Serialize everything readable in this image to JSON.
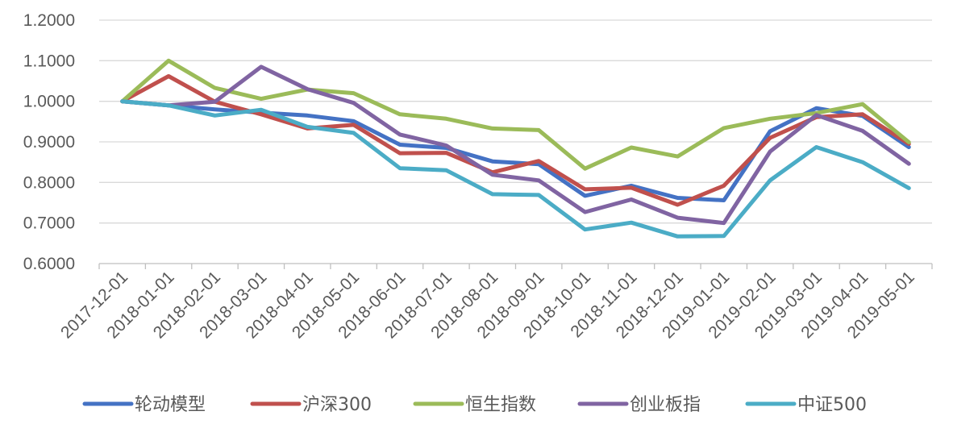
{
  "chart_data": {
    "type": "line",
    "title": "",
    "xlabel": "",
    "ylabel": "",
    "ylim": [
      0.6,
      1.2
    ],
    "yticks": [
      "0.6000",
      "0.7000",
      "0.8000",
      "0.9000",
      "1.0000",
      "1.1000",
      "1.2000"
    ],
    "ytick_values": [
      0.6,
      0.7,
      0.8,
      0.9,
      1.0,
      1.1,
      1.2
    ],
    "grid": true,
    "legend_position": "bottom",
    "categories": [
      "2017-12-01",
      "2018-01-01",
      "2018-02-01",
      "2018-03-01",
      "2018-04-01",
      "2018-05-01",
      "2018-06-01",
      "2018-07-01",
      "2018-08-01",
      "2018-09-01",
      "2018-10-01",
      "2018-11-01",
      "2018-12-01",
      "2019-01-01",
      "2019-02-01",
      "2019-03-01",
      "2019-04-01",
      "2019-05-01"
    ],
    "series": [
      {
        "name": "轮动模型",
        "color": "#4472C4",
        "values": [
          1.0,
          0.99,
          0.98,
          0.972,
          0.965,
          0.951,
          0.893,
          0.885,
          0.852,
          0.845,
          0.767,
          0.792,
          0.762,
          0.756,
          0.926,
          0.983,
          0.964,
          0.887
        ]
      },
      {
        "name": "沪深300",
        "color": "#C0504D",
        "values": [
          1.0,
          1.062,
          0.999,
          0.968,
          0.933,
          0.942,
          0.872,
          0.873,
          0.825,
          0.853,
          0.783,
          0.787,
          0.745,
          0.792,
          0.91,
          0.961,
          0.968,
          0.895
        ]
      },
      {
        "name": "恒生指数",
        "color": "#9BBB59",
        "values": [
          1.0,
          1.1,
          1.033,
          1.006,
          1.029,
          1.02,
          0.968,
          0.957,
          0.933,
          0.929,
          0.834,
          0.886,
          0.864,
          0.934,
          0.957,
          0.971,
          0.993,
          0.899
        ]
      },
      {
        "name": "创业板指",
        "color": "#8064A2",
        "values": [
          1.0,
          0.99,
          0.999,
          1.085,
          1.03,
          0.996,
          0.918,
          0.891,
          0.819,
          0.805,
          0.727,
          0.758,
          0.713,
          0.7,
          0.876,
          0.966,
          0.927,
          0.846
        ]
      },
      {
        "name": "中证500",
        "color": "#4BACC6",
        "values": [
          1.0,
          0.99,
          0.965,
          0.979,
          0.937,
          0.922,
          0.835,
          0.83,
          0.771,
          0.769,
          0.684,
          0.701,
          0.667,
          0.668,
          0.805,
          0.887,
          0.85,
          0.786
        ]
      }
    ]
  }
}
